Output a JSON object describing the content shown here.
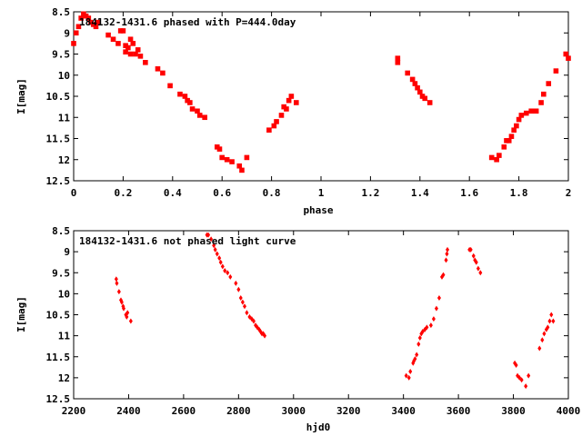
{
  "colors": {
    "points": "#ff0000",
    "axes": "#000000",
    "background": "#ffffff"
  },
  "chart_data": [
    {
      "type": "scatter",
      "title": "184132-1431.6 phased with P=444.0day",
      "xlabel": "phase",
      "ylabel": "I[mag]",
      "xlim": [
        0,
        2
      ],
      "ylim": [
        12.5,
        8.5
      ],
      "y_inverted": true,
      "grid": false,
      "xticks": [
        "0",
        "0.2",
        "0.4",
        "0.6",
        "0.8",
        "1",
        "1.2",
        "1.4",
        "1.6",
        "1.8",
        "2"
      ],
      "yticks": [
        "8.5",
        "9",
        "9.5",
        "10",
        "10.5",
        "11",
        "11.5",
        "12",
        "12.5"
      ],
      "series": [
        {
          "x": [
            0.0,
            0.01,
            0.02,
            0.03,
            0.04,
            0.05,
            0.06,
            0.07,
            0.08,
            0.09,
            0.1,
            0.14,
            0.16,
            0.18,
            0.19,
            0.2,
            0.21,
            0.21,
            0.22,
            0.23,
            0.23,
            0.24,
            0.25,
            0.26,
            0.27,
            0.29,
            0.34,
            0.36,
            0.39,
            0.43,
            0.45,
            0.46,
            0.47,
            0.48,
            0.5,
            0.51,
            0.53,
            0.58,
            0.59,
            0.6,
            0.62,
            0.64,
            0.67,
            0.68,
            0.7,
            0.79,
            0.81,
            0.82,
            0.84,
            0.85,
            0.86,
            0.87,
            0.88,
            0.9,
            1.31,
            1.31,
            1.35,
            1.37,
            1.38,
            1.39,
            1.4,
            1.41,
            1.42,
            1.44,
            1.69,
            1.71,
            1.72,
            1.74,
            1.75,
            1.76,
            1.77,
            1.78,
            1.79,
            1.8,
            1.81,
            1.83,
            1.85,
            1.87,
            1.89,
            1.9,
            1.92,
            1.95,
            1.99,
            2.0
          ],
          "y": [
            9.25,
            9.0,
            8.85,
            8.65,
            8.55,
            8.6,
            8.65,
            8.75,
            8.8,
            8.85,
            8.75,
            9.05,
            9.15,
            9.25,
            8.95,
            8.95,
            9.3,
            9.45,
            9.35,
            9.15,
            9.5,
            9.25,
            9.5,
            9.4,
            9.55,
            9.7,
            9.85,
            9.95,
            10.25,
            10.45,
            10.5,
            10.6,
            10.65,
            10.8,
            10.85,
            10.95,
            11.0,
            11.7,
            11.75,
            11.95,
            12.0,
            12.05,
            12.15,
            12.25,
            11.95,
            11.3,
            11.2,
            11.1,
            10.95,
            10.75,
            10.8,
            10.6,
            10.5,
            10.65,
            9.6,
            9.7,
            9.95,
            10.1,
            10.2,
            10.3,
            10.4,
            10.5,
            10.55,
            10.65,
            11.95,
            12.0,
            11.9,
            11.7,
            11.55,
            11.55,
            11.45,
            11.3,
            11.2,
            11.05,
            10.95,
            10.9,
            10.85,
            10.85,
            10.65,
            10.45,
            10.2,
            9.9,
            9.5,
            9.6
          ]
        }
      ]
    },
    {
      "type": "scatter",
      "title": "184132-1431.6 not phased light curve",
      "xlabel": "hjd0",
      "ylabel": "I[mag]",
      "xlim": [
        2200,
        4000
      ],
      "ylim": [
        12.5,
        8.5
      ],
      "y_inverted": true,
      "grid": false,
      "xticks": [
        "2200",
        "2400",
        "2600",
        "2800",
        "3000",
        "3200",
        "3400",
        "3600",
        "3800",
        "4000"
      ],
      "yticks": [
        "8.5",
        "9",
        "9.5",
        "10",
        "10.5",
        "11",
        "11.5",
        "12",
        "12.5"
      ],
      "series": [
        {
          "x": [
            2355,
            2357,
            2365,
            2372,
            2375,
            2380,
            2382,
            2390,
            2393,
            2396,
            2408,
            2685,
            2690,
            2700,
            2710,
            2715,
            2722,
            2730,
            2735,
            2742,
            2750,
            2760,
            2770,
            2790,
            2800,
            2808,
            2815,
            2822,
            2830,
            2840,
            2848,
            2855,
            2862,
            2868,
            2875,
            2880,
            2885,
            2890,
            2895,
            3410,
            3420,
            3425,
            3435,
            3438,
            3442,
            3448,
            3455,
            3460,
            3465,
            3470,
            3478,
            3485,
            3500,
            3510,
            3520,
            3530,
            3540,
            3545,
            3555,
            3558,
            3560,
            3640,
            3645,
            3655,
            3660,
            3665,
            3672,
            3680,
            3805,
            3810,
            3815,
            3822,
            3830,
            3845,
            3855,
            3895,
            3905,
            3912,
            3920,
            3925,
            3932,
            3938,
            3945
          ],
          "y": [
            9.65,
            9.75,
            9.95,
            10.15,
            10.2,
            10.3,
            10.35,
            10.5,
            10.55,
            10.45,
            10.65,
            8.6,
            8.6,
            8.7,
            8.85,
            8.95,
            9.05,
            9.15,
            9.25,
            9.35,
            9.45,
            9.5,
            9.6,
            9.75,
            9.9,
            10.1,
            10.2,
            10.3,
            10.45,
            10.55,
            10.6,
            10.65,
            10.75,
            10.8,
            10.85,
            10.9,
            10.95,
            10.95,
            11.0,
            11.95,
            12.0,
            11.85,
            11.65,
            11.6,
            11.55,
            11.45,
            11.2,
            11.05,
            10.95,
            10.9,
            10.85,
            10.8,
            10.75,
            10.6,
            10.35,
            10.1,
            9.6,
            9.55,
            9.2,
            9.05,
            8.95,
            8.95,
            8.95,
            9.1,
            9.2,
            9.25,
            9.4,
            9.5,
            11.65,
            11.7,
            11.95,
            12.0,
            12.05,
            12.2,
            11.95,
            11.3,
            11.1,
            10.95,
            10.85,
            10.8,
            10.65,
            10.5,
            10.65
          ]
        }
      ]
    }
  ]
}
